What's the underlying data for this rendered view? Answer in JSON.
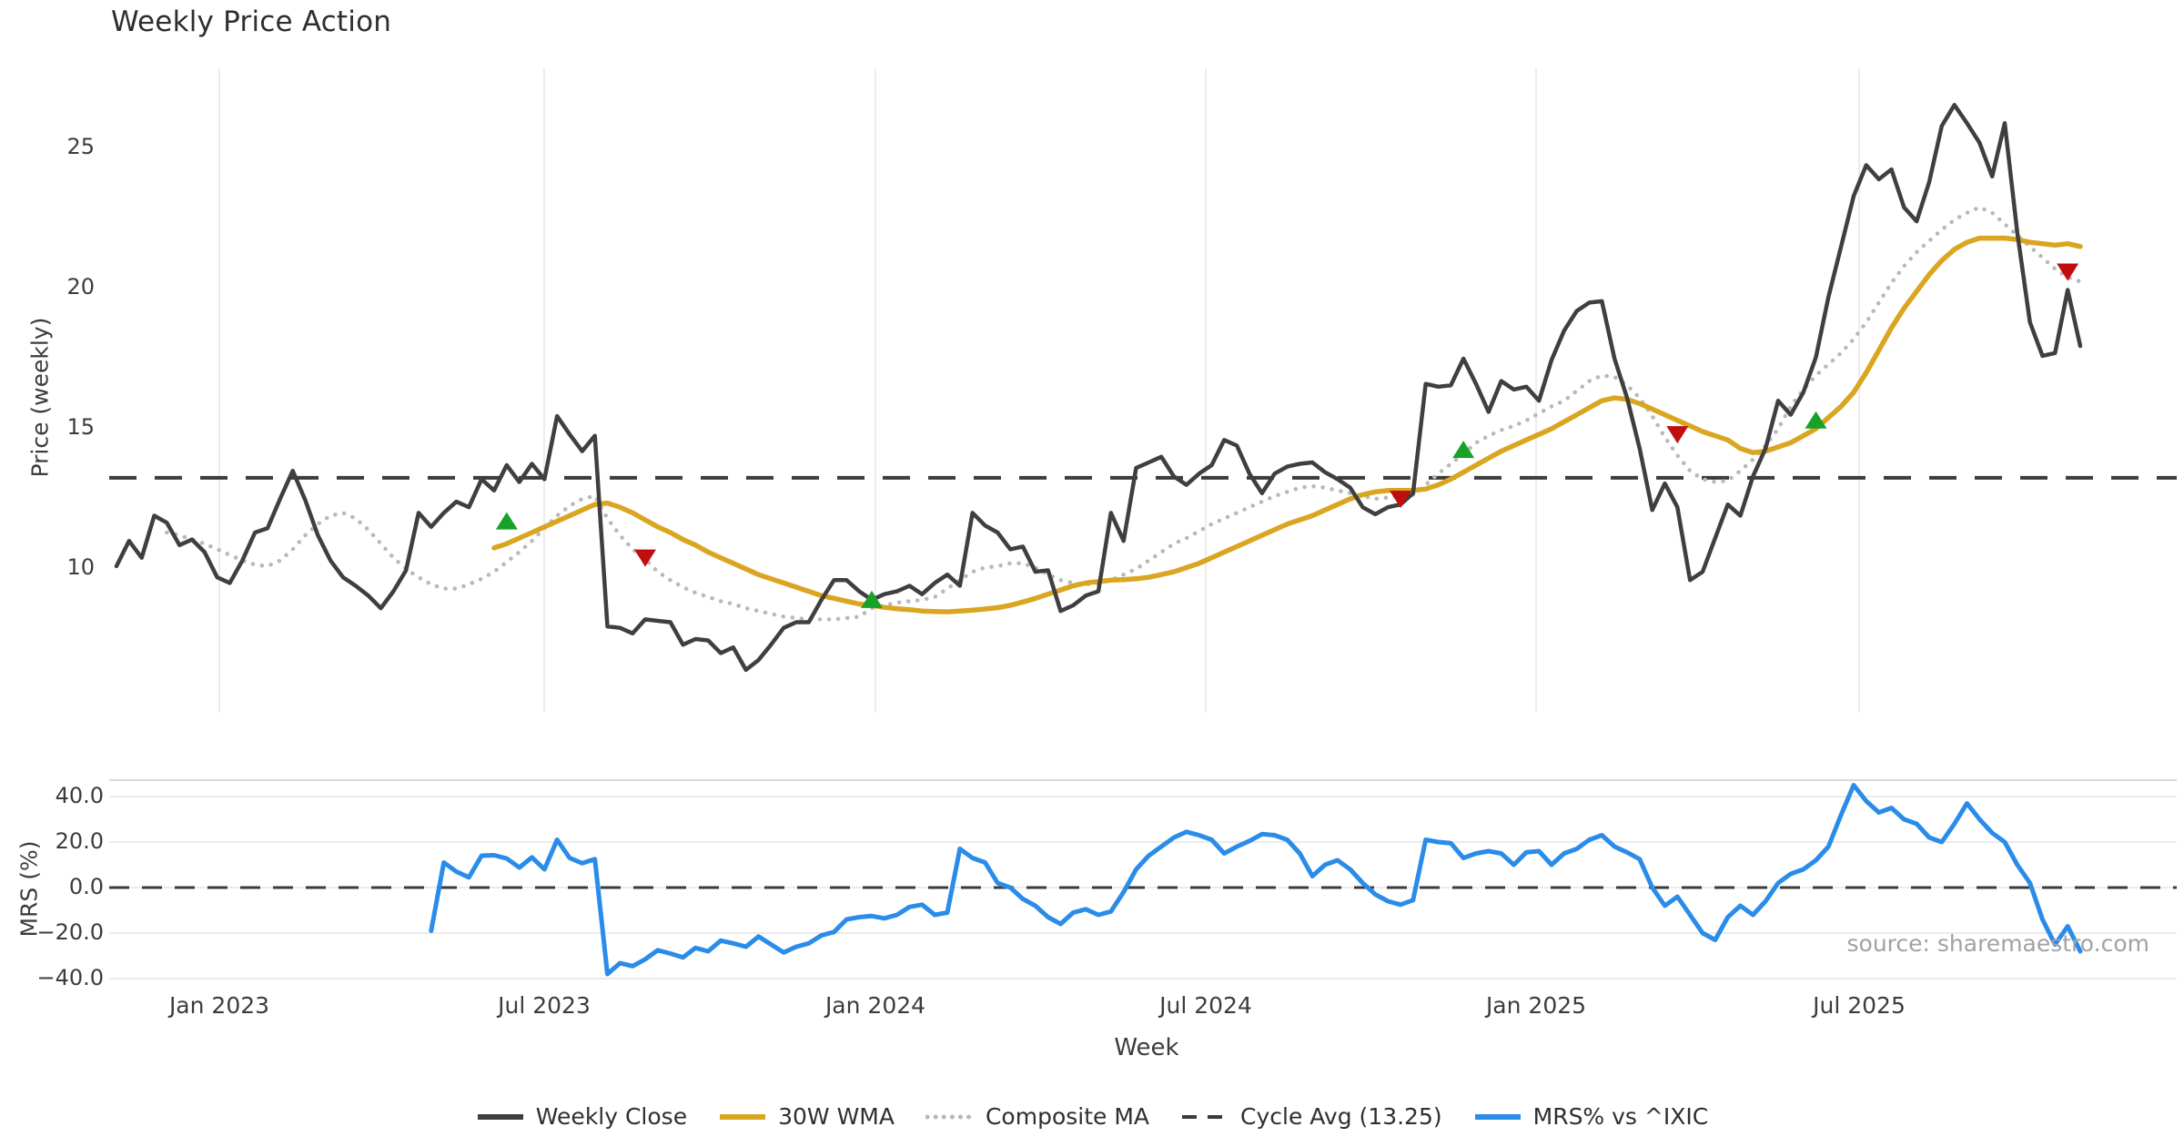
{
  "title": "Weekly Price Action",
  "price_panel": {
    "ylabel": "Price (weekly)",
    "tick_labels": [
      "25",
      "20",
      "15",
      "10"
    ]
  },
  "mrs_panel": {
    "ylabel": "MRS (%)",
    "tick_labels": [
      "40.0",
      "20.0",
      "0.0",
      "−20.0",
      "−40.0"
    ],
    "source_text": "source: sharemaestro.com"
  },
  "x_axis": {
    "label": "Week",
    "tick_labels": [
      "Jan 2023",
      "Jul 2023",
      "Jan 2024",
      "Jul 2024",
      "Jan 2025",
      "Jul 2025"
    ]
  },
  "legend": [
    {
      "label": "Weekly Close",
      "color": "#3f3f3f",
      "style": "solid"
    },
    {
      "label": "30W WMA",
      "color": "#DAA520",
      "style": "solid"
    },
    {
      "label": "Composite MA",
      "color": "#b9b9b9",
      "style": "dotted"
    },
    {
      "label": "Cycle Avg (13.25)",
      "color": "#3b3b3b",
      "style": "dashed"
    },
    {
      "label": "MRS% vs ^IXIC",
      "color": "#2a8ce8",
      "style": "solid"
    }
  ],
  "chart_data": {
    "type": "line",
    "title": "Weekly Price Action",
    "x_unit": "week",
    "x_range_dates": [
      "Nov 2022",
      "Nov 2025"
    ],
    "x_tick_labels": [
      "Jan 2023",
      "Jul 2023",
      "Jan 2024",
      "Jul 2024",
      "Jan 2025",
      "Jul 2025"
    ],
    "price_axis": {
      "label": "Price (weekly)",
      "ticks": [
        25,
        20,
        15,
        10
      ]
    },
    "mrs_axis": {
      "label": "MRS (%)",
      "ticks": [
        40,
        20,
        0,
        -20,
        -40
      ]
    },
    "cycle_avg": 13.25,
    "grid": true,
    "legend_position": "bottom",
    "series": [
      {
        "name": "Weekly Close",
        "panel": "price",
        "color": "#3f3f3f",
        "style": "solid",
        "start_week": 0,
        "values": [
          10.1,
          11.0,
          10.4,
          11.9,
          11.65,
          10.85,
          11.05,
          10.6,
          9.7,
          9.5,
          10.3,
          11.3,
          11.45,
          12.5,
          13.5,
          12.45,
          11.2,
          10.3,
          9.7,
          9.4,
          9.05,
          8.6,
          9.2,
          9.95,
          12.0,
          11.5,
          12.0,
          12.4,
          12.2,
          13.2,
          12.8,
          13.7,
          13.1,
          13.75,
          13.2,
          15.45,
          14.8,
          14.2,
          14.75,
          7.95,
          7.9,
          7.7,
          8.2,
          8.15,
          8.1,
          7.3,
          7.5,
          7.45,
          7.0,
          7.2,
          6.4,
          6.75,
          7.3,
          7.9,
          8.1,
          8.1,
          8.9,
          9.6,
          9.6,
          9.2,
          8.9,
          9.1,
          9.2,
          9.4,
          9.1,
          9.5,
          9.8,
          9.4,
          12.0,
          11.55,
          11.3,
          10.7,
          10.8,
          9.9,
          9.95,
          8.5,
          8.7,
          9.05,
          9.2,
          12.0,
          11.0,
          13.6,
          13.8,
          14.0,
          13.3,
          13.0,
          13.4,
          13.7,
          14.6,
          14.4,
          13.4,
          12.7,
          13.4,
          13.65,
          13.75,
          13.8,
          13.45,
          13.2,
          12.9,
          12.2,
          11.95,
          12.2,
          12.3,
          12.7,
          16.6,
          16.5,
          16.55,
          17.5,
          16.6,
          15.6,
          16.7,
          16.4,
          16.5,
          16.0,
          17.45,
          18.5,
          19.2,
          19.5,
          19.55,
          17.5,
          16.1,
          14.3,
          12.1,
          13.05,
          12.2,
          9.6,
          9.9,
          11.1,
          12.3,
          11.9,
          13.3,
          14.3,
          16.0,
          15.5,
          16.3,
          17.55,
          19.7,
          21.5,
          23.3,
          24.4,
          23.9,
          24.25,
          22.9,
          22.4,
          23.8,
          25.8,
          26.55,
          25.9,
          25.2,
          24.0,
          25.9,
          22.0,
          18.8,
          17.6,
          17.7,
          19.95,
          17.95
        ]
      },
      {
        "name": "30W WMA",
        "panel": "price",
        "color": "#DAA520",
        "style": "solid",
        "start_week": 30,
        "values": [
          10.75,
          10.9,
          11.1,
          11.3,
          11.5,
          11.7,
          11.9,
          12.1,
          12.3,
          12.35,
          12.2,
          12.0,
          11.75,
          11.5,
          11.3,
          11.05,
          10.85,
          10.6,
          10.4,
          10.2,
          10.0,
          9.8,
          9.65,
          9.5,
          9.35,
          9.2,
          9.05,
          8.95,
          8.85,
          8.75,
          8.7,
          8.63,
          8.58,
          8.55,
          8.5,
          8.48,
          8.47,
          8.5,
          8.53,
          8.57,
          8.62,
          8.7,
          8.82,
          8.95,
          9.1,
          9.25,
          9.4,
          9.5,
          9.55,
          9.6,
          9.62,
          9.65,
          9.7,
          9.8,
          9.9,
          10.05,
          10.2,
          10.4,
          10.6,
          10.8,
          11.0,
          11.2,
          11.4,
          11.6,
          11.75,
          11.9,
          12.1,
          12.3,
          12.5,
          12.65,
          12.75,
          12.8,
          12.8,
          12.8,
          12.85,
          13.0,
          13.2,
          13.45,
          13.7,
          13.95,
          14.2,
          14.4,
          14.6,
          14.8,
          15.0,
          15.25,
          15.5,
          15.75,
          16.0,
          16.1,
          16.05,
          15.9,
          15.7,
          15.5,
          15.3,
          15.1,
          14.9,
          14.75,
          14.6,
          14.3,
          14.15,
          14.2,
          14.35,
          14.5,
          14.75,
          15.0,
          15.4,
          15.8,
          16.3,
          17.0,
          17.8,
          18.6,
          19.3,
          19.9,
          20.5,
          21.0,
          21.4,
          21.65,
          21.8,
          21.8,
          21.8,
          21.75,
          21.65,
          21.6,
          21.55,
          21.6,
          21.5
        ]
      },
      {
        "name": "Composite MA",
        "panel": "price",
        "color": "#b9b9b9",
        "style": "dotted",
        "start_week": 4,
        "values": [
          11.3,
          11.2,
          11.05,
          10.9,
          10.7,
          10.5,
          10.3,
          10.15,
          10.1,
          10.3,
          10.7,
          11.2,
          11.6,
          11.9,
          12.0,
          11.8,
          11.4,
          10.9,
          10.4,
          10.0,
          9.7,
          9.45,
          9.3,
          9.3,
          9.45,
          9.65,
          9.9,
          10.25,
          10.6,
          11.0,
          11.45,
          11.9,
          12.25,
          12.5,
          12.6,
          11.8,
          11.2,
          10.7,
          10.35,
          9.9,
          9.6,
          9.35,
          9.15,
          9.0,
          8.85,
          8.75,
          8.6,
          8.5,
          8.4,
          8.3,
          8.25,
          8.2,
          8.2,
          8.2,
          8.25,
          8.3,
          8.6,
          8.7,
          8.8,
          8.85,
          8.9,
          9.0,
          9.3,
          9.6,
          9.9,
          10.05,
          10.1,
          10.2,
          10.2,
          10.05,
          9.8,
          9.6,
          9.5,
          9.45,
          9.5,
          9.6,
          9.8,
          10.0,
          10.3,
          10.6,
          10.9,
          11.1,
          11.35,
          11.6,
          11.8,
          12.0,
          12.2,
          12.4,
          12.6,
          12.75,
          12.9,
          12.95,
          12.9,
          12.8,
          12.7,
          12.6,
          12.5,
          12.55,
          12.6,
          12.65,
          13.0,
          13.4,
          13.75,
          14.1,
          14.5,
          14.75,
          14.95,
          15.1,
          15.3,
          15.55,
          15.8,
          16.0,
          16.35,
          16.7,
          16.9,
          16.85,
          16.55,
          16.1,
          15.45,
          14.7,
          14.05,
          13.5,
          13.2,
          13.1,
          13.15,
          13.5,
          13.9,
          14.4,
          15.0,
          15.8,
          16.4,
          16.9,
          17.3,
          17.7,
          18.2,
          18.8,
          19.5,
          20.2,
          20.8,
          21.3,
          21.7,
          22.1,
          22.45,
          22.7,
          22.9,
          22.7,
          22.3,
          21.9,
          21.5,
          21.1,
          20.7,
          20.4,
          20.25
        ]
      },
      {
        "name": "Cycle Avg (13.25)",
        "panel": "price",
        "color": "#3b3b3b",
        "style": "dashed",
        "value": 13.25
      },
      {
        "name": "MRS% vs ^IXIC",
        "panel": "mrs",
        "color": "#2a8ce8",
        "style": "solid",
        "start_week": 25,
        "values": [
          -19,
          11,
          7,
          4.5,
          14,
          14.2,
          12.8,
          8.8,
          13.3,
          8,
          21,
          13,
          10.7,
          12.5,
          -38,
          -33.2,
          -34.5,
          -31.5,
          -27.5,
          -29,
          -30.7,
          -26.5,
          -28,
          -23.3,
          -24.5,
          -26,
          -21.5,
          -25,
          -28.5,
          -26,
          -24.5,
          -21,
          -19.5,
          -14,
          -13,
          -12.5,
          -13.5,
          -12,
          -8.5,
          -7.5,
          -12,
          -11,
          17,
          13,
          11,
          2,
          0,
          -5,
          -8,
          -13,
          -16,
          -11,
          -9.5,
          -12,
          -10.5,
          -2,
          8,
          14,
          18,
          22,
          24.5,
          23,
          21,
          15,
          18,
          20.5,
          23.5,
          23,
          21,
          15,
          5,
          10,
          12,
          8,
          2,
          -3,
          -6,
          -7.5,
          -5.5,
          21,
          20,
          19.5,
          13,
          15,
          16,
          15,
          10,
          15.5,
          16,
          10,
          15,
          17,
          21,
          23,
          18,
          15.5,
          12.5,
          0,
          -8,
          -4,
          -12,
          -20,
          -23,
          -13,
          -8,
          -12,
          -6,
          2,
          6,
          8,
          12,
          18,
          32,
          45,
          38,
          33,
          35,
          30,
          28,
          22,
          20,
          28,
          37,
          30,
          24,
          20,
          10,
          2,
          -14,
          -25,
          -17,
          -28
        ]
      }
    ],
    "markers": {
      "buy": {
        "shape": "triangle-up",
        "color": "#18a127",
        "points": [
          {
            "week": 31,
            "value": 11.7
          },
          {
            "week": 60,
            "value": 8.9
          },
          {
            "week": 107,
            "value": 14.25
          },
          {
            "week": 135,
            "value": 15.3
          }
        ]
      },
      "sell": {
        "shape": "triangle-down",
        "color": "#c00d0d",
        "points": [
          {
            "week": 42,
            "value": 10.4
          },
          {
            "week": 102,
            "value": 12.5
          },
          {
            "week": 124,
            "value": 14.8
          },
          {
            "week": 155,
            "value": 20.6
          }
        ]
      }
    }
  }
}
